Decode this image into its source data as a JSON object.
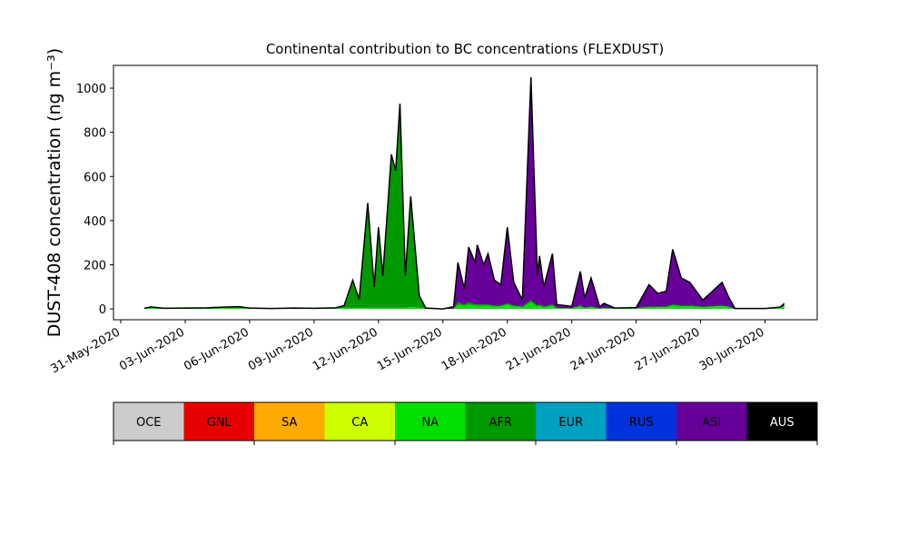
{
  "chart_data": {
    "type": "stacked_area",
    "title": "Continental contribution to BC concentrations (FLEXDUST)",
    "y_label": "DUST-408 concentration (ng m⁻³)",
    "x": [
      1.1,
      1.4,
      2,
      3,
      4,
      5,
      5.5,
      6,
      7,
      8,
      9,
      10,
      10.4,
      10.8,
      11.1,
      11.5,
      11.8,
      12,
      12.2,
      12.6,
      12.8,
      13,
      13.25,
      13.5,
      13.9,
      14.2,
      15,
      15.5,
      15.7,
      16,
      16.2,
      16.5,
      16.6,
      16.9,
      17.1,
      17.4,
      17.7,
      18,
      18.3,
      18.7,
      19.1,
      19.4,
      19.5,
      19.7,
      20.1,
      20.3,
      21,
      21.4,
      21.6,
      21.9,
      22.3,
      22.5,
      23,
      24,
      24.6,
      25,
      25.4,
      25.7,
      26.1,
      26.5,
      27.1,
      28,
      28.3,
      28.6,
      30,
      30.7,
      30.9
    ],
    "series": [
      {
        "name": "NA",
        "color": "#00e000",
        "values": [
          3,
          5,
          2,
          3,
          3,
          5,
          5,
          2,
          2,
          3,
          2,
          3,
          5,
          5,
          3,
          5,
          5,
          5,
          5,
          5,
          5,
          5,
          5,
          10,
          5,
          2,
          0,
          0,
          20,
          15,
          20,
          15,
          15,
          15,
          15,
          12,
          12,
          20,
          12,
          8,
          30,
          10,
          15,
          7,
          15,
          3,
          3,
          12,
          4,
          8,
          2,
          4,
          2,
          3,
          7,
          8,
          8,
          15,
          12,
          12,
          8,
          13,
          9,
          0,
          2,
          5,
          13
        ]
      },
      {
        "name": "AFR",
        "color": "#009900",
        "values": [
          0,
          2,
          0,
          0,
          0,
          1,
          2,
          1,
          0,
          0,
          0,
          2,
          10,
          125,
          40,
          475,
          95,
          365,
          145,
          695,
          620,
          925,
          145,
          500,
          55,
          2,
          0,
          0,
          10,
          5,
          10,
          5,
          5,
          5,
          5,
          3,
          3,
          5,
          3,
          2,
          10,
          5,
          5,
          3,
          5,
          2,
          0,
          3,
          1,
          2,
          0,
          1,
          0,
          0,
          3,
          2,
          2,
          5,
          3,
          3,
          2,
          2,
          1,
          0,
          0,
          0,
          2
        ]
      },
      {
        "name": "ASI",
        "color": "#660099",
        "values": [
          0,
          2,
          1,
          1,
          2,
          3,
          3,
          1,
          0,
          1,
          1,
          0,
          0,
          0,
          0,
          0,
          0,
          0,
          0,
          0,
          0,
          0,
          0,
          0,
          0,
          0,
          0,
          10,
          180,
          70,
          250,
          190,
          270,
          180,
          230,
          115,
          95,
          345,
          105,
          30,
          1010,
          135,
          220,
          90,
          230,
          15,
          8,
          155,
          45,
          130,
          8,
          20,
          2,
          3,
          100,
          60,
          70,
          250,
          125,
          105,
          30,
          105,
          45,
          2,
          0,
          3,
          10
        ]
      }
    ],
    "outline_color": "#000000",
    "xlim": [
      -0.34,
      32.43
    ],
    "xticks": [
      {
        "value": 0,
        "label": "31-May-2020"
      },
      {
        "value": 3,
        "label": "03-Jun-2020"
      },
      {
        "value": 6,
        "label": "06-Jun-2020"
      },
      {
        "value": 9,
        "label": "09-Jun-2020"
      },
      {
        "value": 12,
        "label": "12-Jun-2020"
      },
      {
        "value": 15,
        "label": "15-Jun-2020"
      },
      {
        "value": 18,
        "label": "18-Jun-2020"
      },
      {
        "value": 21,
        "label": "21-Jun-2020"
      },
      {
        "value": 24,
        "label": "24-Jun-2020"
      },
      {
        "value": 27,
        "label": "27-Jun-2020"
      },
      {
        "value": 30,
        "label": "30-Jun-2020"
      }
    ],
    "ylim": [
      -49,
      1103
    ],
    "yticks": [
      0,
      200,
      400,
      600,
      800,
      1000
    ],
    "grid": false,
    "colorbar": {
      "labels": [
        "OCE",
        "GNL",
        "SA",
        "CA",
        "NA",
        "AFR",
        "EUR",
        "RUS",
        "ASI",
        "AUS"
      ],
      "colors": [
        "#cccccc",
        "#e60000",
        "#ffaa00",
        "#ccff00",
        "#00e000",
        "#009900",
        "#00a0c0",
        "#0033dd",
        "#660099",
        "#000000"
      ],
      "text_colors": [
        "#000000",
        "#000000",
        "#000000",
        "#000000",
        "#000000",
        "#000000",
        "#000000",
        "#000000",
        "#000000",
        "#ffffff"
      ]
    }
  }
}
